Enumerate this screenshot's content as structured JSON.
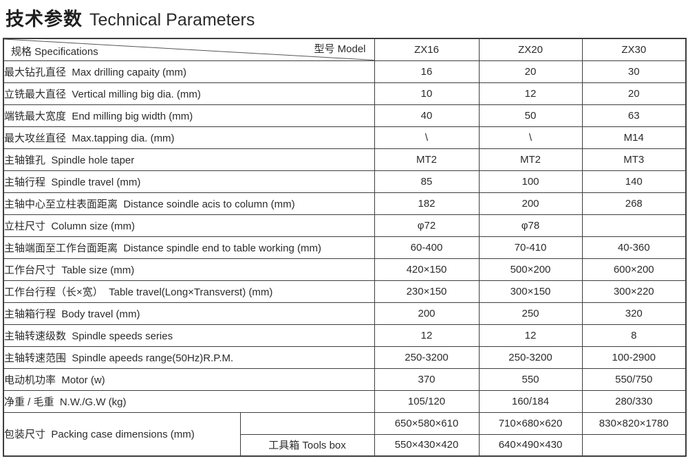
{
  "page": {
    "title_zh": "技术参数",
    "title_en": "Technical Parameters"
  },
  "table": {
    "corner": {
      "specs_label": "规格 Specifications",
      "model_label": "型号  Model"
    },
    "models": [
      "ZX16",
      "ZX20",
      "ZX30"
    ],
    "rows": [
      {
        "label": "最大钻孔直径  Max drilling capaity (mm)",
        "values": [
          "16",
          "20",
          "30"
        ]
      },
      {
        "label": "立铣最大直径  Vertical milling big dia. (mm)",
        "values": [
          "10",
          "12",
          "20"
        ]
      },
      {
        "label": "端铣最大宽度  End milling big width (mm)",
        "values": [
          "40",
          "50",
          "63"
        ]
      },
      {
        "label": "最大攻丝直径  Max.tapping dia. (mm)",
        "values": [
          "\\",
          "\\",
          "M14"
        ]
      },
      {
        "label": "主轴锥孔  Spindle hole taper",
        "values": [
          "MT2",
          "MT2",
          "MT3"
        ]
      },
      {
        "label": "主轴行程  Spindle travel (mm)",
        "values": [
          "85",
          "100",
          "140"
        ]
      },
      {
        "label": "主轴中心至立柱表面距离  Distance soindle acis to column (mm)",
        "values": [
          "182",
          "200",
          "268"
        ]
      },
      {
        "label": "立柱尺寸  Column size (mm)",
        "values": [
          "φ72",
          "φ78",
          ""
        ]
      },
      {
        "label": "主轴端面至工作台面距离  Distance spindle end to table working (mm)",
        "values": [
          "60-400",
          "70-410",
          "40-360"
        ]
      },
      {
        "label": "工作台尺寸  Table size (mm)",
        "values": [
          "420×150",
          "500×200",
          "600×200"
        ]
      },
      {
        "label": "工作台行程（长×宽）  Table travel(Long×Transverst) (mm)",
        "values": [
          "230×150",
          "300×150",
          "300×220"
        ]
      },
      {
        "label": "主轴箱行程  Body travel (mm)",
        "values": [
          "200",
          "250",
          "320"
        ]
      },
      {
        "label": "主轴转速级数  Spindle speeds series",
        "values": [
          "12",
          "12",
          "8"
        ]
      },
      {
        "label": "主轴转速范围  Spindle apeeds range(50Hz)R.P.M.",
        "values": [
          "250-3200",
          "250-3200",
          "100-2900"
        ]
      },
      {
        "label": "电动机功率  Motor (w)",
        "values": [
          "370",
          "550",
          "550/750"
        ]
      },
      {
        "label": "净重 / 毛重  N.W./G.W (kg)",
        "values": [
          "105/120",
          "160/184",
          "280/330"
        ]
      }
    ],
    "packing": {
      "label": "包装尺寸  Packing case dimensions (mm)",
      "rows": [
        {
          "sub": "",
          "values": [
            "650×580×610",
            "710×680×620",
            "830×820×1780"
          ]
        },
        {
          "sub": "工具箱 Tools box",
          "values": [
            "550×430×420",
            "640×490×430",
            ""
          ]
        }
      ]
    },
    "colors": {
      "row_shade": "#e8e8e6",
      "border": "#3d3d3d",
      "text": "#2b2b2b"
    }
  }
}
